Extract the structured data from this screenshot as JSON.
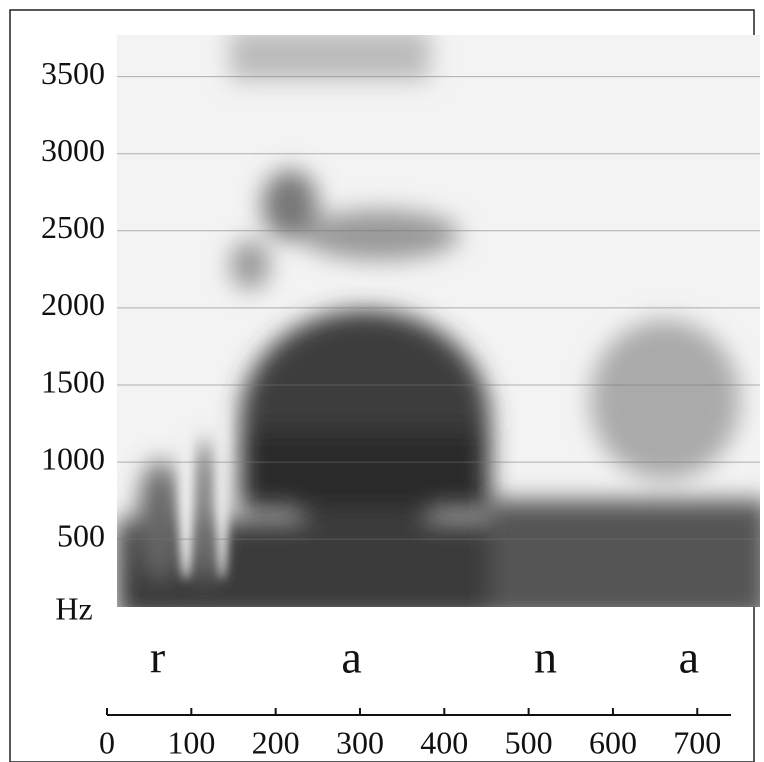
{
  "chart_data": {
    "type": "spectrogram",
    "y_label": "Hz",
    "ylim": [
      60,
      3770
    ],
    "yticks": [
      500,
      1000,
      1500,
      2000,
      2500,
      3000,
      3500
    ],
    "xlim": [
      0,
      740
    ],
    "xticks": [
      0,
      100,
      200,
      300,
      400,
      500,
      600,
      700
    ],
    "segments": {
      "labels": [
        "r",
        "a",
        "n",
        "a"
      ],
      "x": [
        60,
        290,
        520,
        690
      ]
    },
    "grid": true
  }
}
